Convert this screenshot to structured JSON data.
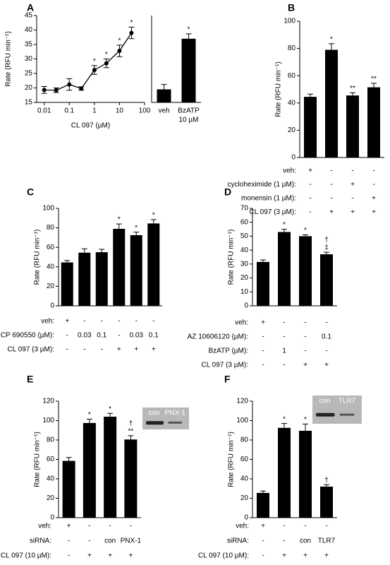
{
  "chart_data": [
    {
      "type": "line",
      "panel": "A",
      "ylabel": "Rate (RFU min⁻¹)",
      "xlabel": "CL 097 (µM)",
      "log_x": true,
      "x": [
        0.01,
        0.03,
        0.1,
        0.3,
        1,
        3,
        10,
        30
      ],
      "values": [
        19.3,
        19.2,
        21.2,
        19.8,
        26.2,
        28.5,
        32.8,
        39
      ],
      "errors": [
        1.2,
        0.8,
        2,
        0.6,
        1.5,
        1.5,
        2,
        2
      ],
      "annotations": [
        null,
        null,
        null,
        null,
        [
          "*"
        ],
        [
          "*"
        ],
        [
          "*"
        ],
        [
          "*"
        ]
      ],
      "xlim": [
        0.005,
        100
      ],
      "ylim": [
        15,
        45
      ],
      "xticks": [
        0.01,
        0.1,
        1,
        10,
        100
      ],
      "yticks": [
        15,
        20,
        25,
        30,
        35,
        40,
        45
      ],
      "color": "#000000"
    },
    {
      "type": "bar",
      "categories": [
        [
          "veh"
        ],
        [
          "BzATP",
          "10 µM"
        ]
      ],
      "values": [
        19.5,
        37
      ],
      "errors": [
        1.7,
        1.7
      ],
      "annotations": [
        null,
        [
          "*"
        ]
      ],
      "ylim": [
        15,
        45
      ],
      "color": "#000000"
    },
    {
      "type": "bar",
      "panel": "B",
      "ylabel": "Rate (RFU min⁻¹)",
      "values": [
        44.5,
        79,
        45.5,
        51.5
      ],
      "errors": [
        2,
        4.5,
        2,
        3
      ],
      "annotations": [
        null,
        [
          "*"
        ],
        [
          "**"
        ],
        [
          "**"
        ]
      ],
      "ylim": [
        0,
        100
      ],
      "yticks": [
        0,
        20,
        40,
        60,
        80,
        100
      ],
      "color": "#000000",
      "conditions": [
        {
          "label": "veh:",
          "values": [
            "+",
            "-",
            "-",
            "-"
          ]
        },
        {
          "label": "cycloheximide (1 µM):",
          "values": [
            "-",
            "-",
            "+",
            "-"
          ]
        },
        {
          "label": "monensin (1 µM):",
          "values": [
            "-",
            "-",
            "-",
            "+"
          ]
        },
        {
          "label": "CL 097 (3 µM):",
          "values": [
            "-",
            "+",
            "+",
            "+"
          ]
        }
      ]
    },
    {
      "type": "bar",
      "panel": "C",
      "ylabel": "Rate (RFU min⁻¹)",
      "values": [
        44.5,
        54.5,
        55,
        79,
        72.5,
        84.5
      ],
      "errors": [
        2,
        4,
        3,
        5,
        3,
        4
      ],
      "annotations": [
        null,
        null,
        null,
        [
          "*"
        ],
        [
          "*"
        ],
        [
          "*"
        ]
      ],
      "ylim": [
        0,
        100
      ],
      "yticks": [
        0,
        20,
        40,
        60,
        80,
        100
      ],
      "color": "#000000",
      "conditions": [
        {
          "label": "veh:",
          "values": [
            "+",
            "-",
            "-",
            "-",
            "-",
            "-"
          ]
        },
        {
          "label": "CP 690550 (µM):",
          "values": [
            "-",
            "0.03",
            "0.1",
            "-",
            "0.03",
            "0.1"
          ]
        },
        {
          "label": "CL 097 (3 µM):",
          "values": [
            "-",
            "-",
            "-",
            "+",
            "+",
            "+"
          ]
        }
      ]
    },
    {
      "type": "bar",
      "panel": "D",
      "ylabel": "Rate (RFU min⁻¹)",
      "values": [
        31.5,
        53,
        50,
        37
      ],
      "errors": [
        1.5,
        2,
        1,
        1.5
      ],
      "annotations": [
        null,
        [
          "*"
        ],
        [
          "*"
        ],
        [
          "†",
          "‡"
        ]
      ],
      "ylim": [
        0,
        70
      ],
      "yticks": [
        0,
        10,
        20,
        30,
        40,
        50,
        60,
        70
      ],
      "color": "#000000",
      "conditions": [
        {
          "label": "veh:",
          "values": [
            "+",
            "-",
            "-",
            "-"
          ]
        },
        {
          "label": "AZ 10606120 (µM):",
          "values": [
            "-",
            "-",
            "-",
            "0.1"
          ]
        },
        {
          "label": "BzATP (µM):",
          "values": [
            "-",
            "1",
            "-",
            "-"
          ]
        },
        {
          "label": "CL 097 (3 µM):",
          "values": [
            "-",
            "-",
            "+",
            "+"
          ]
        }
      ]
    },
    {
      "type": "bar",
      "panel": "E",
      "ylabel": "Rate (RFU min⁻¹)",
      "values": [
        58.5,
        97.5,
        104,
        80.5
      ],
      "errors": [
        3.5,
        4,
        3.5,
        4
      ],
      "annotations": [
        null,
        [
          "*"
        ],
        [
          "*"
        ],
        [
          "†",
          "**"
        ]
      ],
      "ylim": [
        0,
        120
      ],
      "yticks": [
        0,
        20,
        40,
        60,
        80,
        100,
        120
      ],
      "color": "#000000",
      "inset_labels": [
        "con",
        "PNX-1"
      ],
      "conditions": [
        {
          "label": "veh:",
          "values": [
            "+",
            "-",
            "-",
            "-"
          ]
        },
        {
          "label": "siRNA:",
          "values": [
            "-",
            "-",
            "con",
            "PNX-1"
          ]
        },
        {
          "label": "CL 097 (10 µM):",
          "values": [
            "-",
            "+",
            "+",
            "+"
          ]
        }
      ]
    },
    {
      "type": "bar",
      "panel": "F",
      "ylabel": "Rate (RFU min⁻¹)",
      "values": [
        25.5,
        92.5,
        89.5,
        32
      ],
      "errors": [
        2,
        4.5,
        7,
        2
      ],
      "annotations": [
        null,
        [
          "*"
        ],
        [
          "*"
        ],
        [
          "†"
        ]
      ],
      "ylim": [
        0,
        120
      ],
      "yticks": [
        0,
        20,
        40,
        60,
        80,
        100,
        120
      ],
      "color": "#000000",
      "inset_labels": [
        "con",
        "TLR7"
      ],
      "conditions": [
        {
          "label": "veh:",
          "values": [
            "+",
            "-",
            "-",
            "-"
          ]
        },
        {
          "label": "siRNA:",
          "values": [
            "-",
            "-",
            "con",
            "TLR7"
          ]
        },
        {
          "label": "CL 097 (10 µM):",
          "values": [
            "-",
            "+",
            "+",
            "+"
          ]
        }
      ]
    }
  ]
}
